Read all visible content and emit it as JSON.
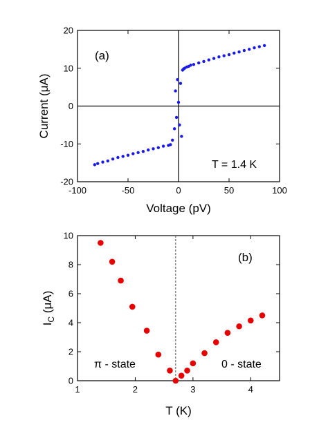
{
  "chart_data": [
    {
      "panel": "(a)",
      "type": "scatter",
      "xlabel": "Voltage (pV)",
      "ylabel": "Current (μA)",
      "xlim": [
        -100,
        100
      ],
      "ylim": [
        -20,
        20
      ],
      "xticks": [
        -100,
        -50,
        0,
        50,
        100
      ],
      "yticks": [
        -20,
        -10,
        0,
        10,
        20
      ],
      "annotation": "T = 1.4 K",
      "marker_color": "#1a1ae6",
      "zero_axes": true,
      "x": [
        -83,
        -80,
        -75,
        -70,
        -65,
        -60,
        -55,
        -50,
        -45,
        -40,
        -35,
        -30,
        -25,
        -20,
        -15,
        -10,
        -8,
        -6,
        -4,
        -2,
        -3,
        -1,
        0,
        1,
        2,
        3,
        4,
        5,
        6,
        8,
        10,
        12,
        15,
        20,
        25,
        30,
        35,
        40,
        45,
        50,
        55,
        60,
        65,
        70,
        75,
        80,
        85
      ],
      "y": [
        -15.5,
        -15.2,
        -14.8,
        -14.5,
        -14.0,
        -13.6,
        -13.3,
        -13.0,
        -12.6,
        -12.3,
        -12.0,
        -11.6,
        -11.3,
        -11.0,
        -10.6,
        -10.4,
        -10.2,
        -9.0,
        -6.0,
        -3.0,
        4.0,
        7.0,
        1.0,
        -5.0,
        6.0,
        -8.0,
        9.5,
        9.8,
        10.0,
        10.3,
        10.5,
        10.8,
        11.0,
        11.4,
        11.8,
        12.2,
        12.6,
        13.0,
        13.3,
        13.6,
        14.0,
        14.3,
        14.7,
        15.0,
        15.4,
        15.7,
        16.0
      ]
    },
    {
      "panel": "(b)",
      "type": "scatter",
      "xlabel": "T (K)",
      "ylabel_main": "I",
      "ylabel_sub": "C",
      "ylabel_rest": " (μA)",
      "xlim": [
        1,
        4.5
      ],
      "ylim": [
        0,
        10
      ],
      "xticks": [
        1,
        2,
        3,
        4
      ],
      "yticks": [
        0,
        2,
        4,
        6,
        8,
        10
      ],
      "vline_x": 2.7,
      "annotation_left": "π - state",
      "annotation_right": "0 - state",
      "marker_color": "#e60000",
      "x": [
        1.4,
        1.6,
        1.75,
        1.95,
        2.2,
        2.4,
        2.6,
        2.7,
        2.8,
        2.9,
        3.0,
        3.2,
        3.4,
        3.6,
        3.8,
        4.0,
        4.2
      ],
      "y": [
        9.5,
        8.2,
        6.9,
        5.1,
        3.45,
        1.8,
        0.7,
        0.0,
        0.35,
        0.7,
        1.2,
        1.9,
        2.65,
        3.3,
        3.75,
        4.15,
        4.5
      ]
    }
  ]
}
